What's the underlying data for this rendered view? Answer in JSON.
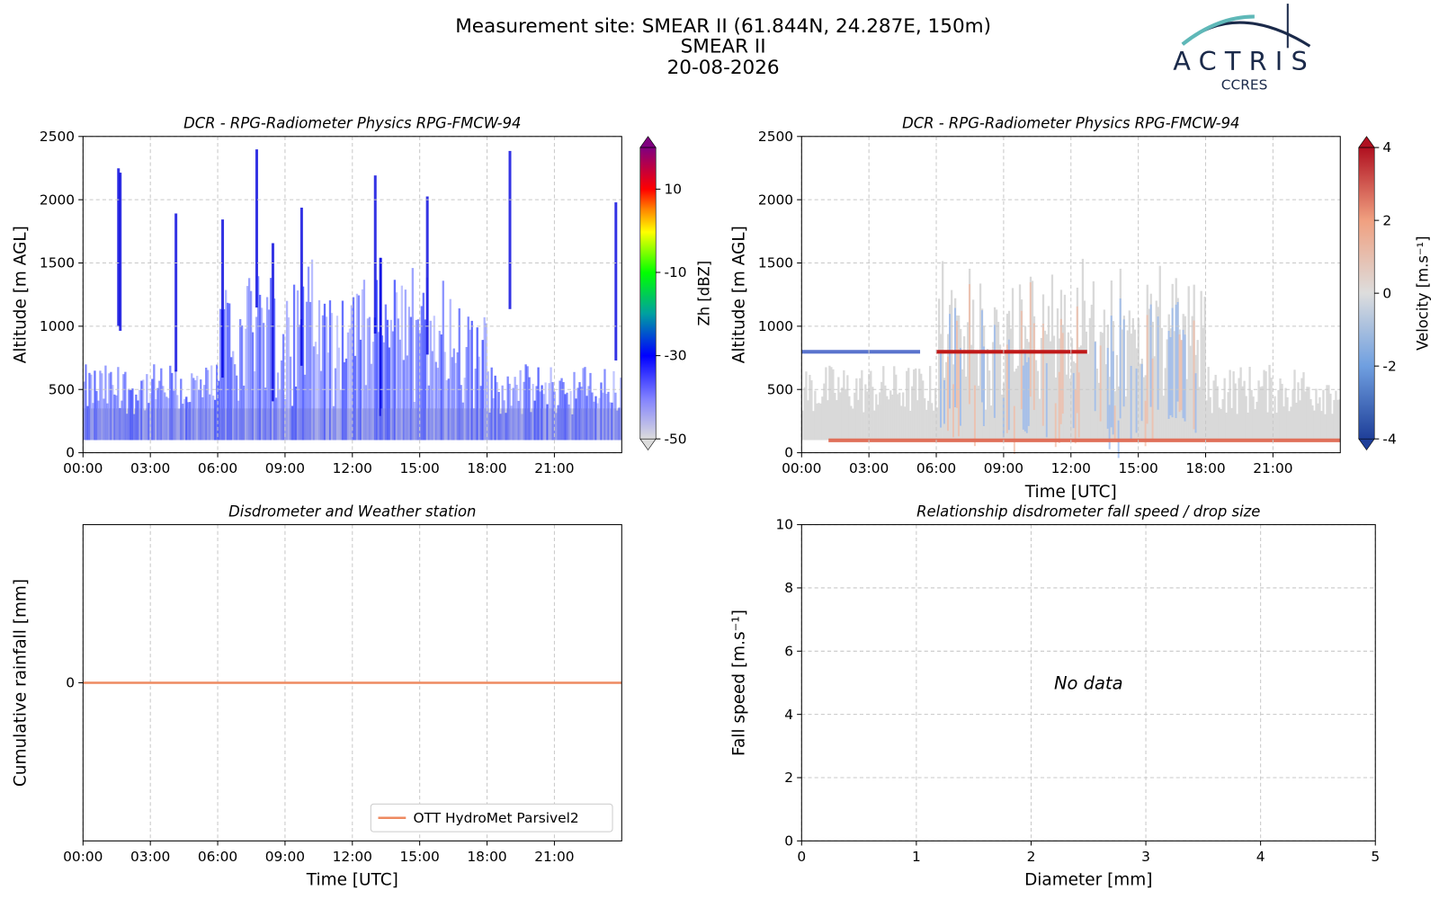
{
  "header": {
    "site": "Measurement site: SMEAR II (61.844N, 24.287E, 150m)",
    "station": "SMEAR II",
    "date": "20-08-2026"
  },
  "logo": {
    "name": "ACTRIS",
    "sub": "CCRES"
  },
  "chart_data": [
    {
      "type": "heatmap",
      "title": "DCR - RPG-Radiometer Physics RPG-FMCW-94",
      "ylabel": "Altitude [m AGL]",
      "xlim": [
        0,
        24
      ],
      "xticks": [
        {
          "value": 0,
          "label": "00:00"
        },
        {
          "value": 3,
          "label": "03:00"
        },
        {
          "value": 6,
          "label": "06:00"
        },
        {
          "value": 9,
          "label": "09:00"
        },
        {
          "value": 12,
          "label": "12:00"
        },
        {
          "value": 15,
          "label": "15:00"
        },
        {
          "value": 18,
          "label": "18:00"
        },
        {
          "value": 21,
          "label": "21:00"
        }
      ],
      "ylim": [
        0,
        2500
      ],
      "yticks": [
        0,
        500,
        1000,
        1500,
        2000,
        2500
      ],
      "grid": true,
      "colorbar": {
        "label": "Zh [dBZ]",
        "lim": [
          -50,
          20
        ],
        "ticks": [
          -50,
          -30,
          -10,
          10
        ],
        "colormap": "radar"
      }
    },
    {
      "type": "heatmap",
      "title": "DCR - RPG-Radiometer Physics RPG-FMCW-94",
      "ylabel": "Altitude [m AGL]",
      "xlabel": "Time [UTC]",
      "xlim": [
        0,
        24
      ],
      "xticks": [
        {
          "value": 0,
          "label": "00:00"
        },
        {
          "value": 3,
          "label": "03:00"
        },
        {
          "value": 6,
          "label": "06:00"
        },
        {
          "value": 9,
          "label": "09:00"
        },
        {
          "value": 12,
          "label": "12:00"
        },
        {
          "value": 15,
          "label": "15:00"
        },
        {
          "value": 18,
          "label": "18:00"
        },
        {
          "value": 21,
          "label": "21:00"
        }
      ],
      "ylim": [
        0,
        2500
      ],
      "yticks": [
        0,
        500,
        1000,
        1500,
        2000,
        2500
      ],
      "grid": true,
      "colorbar": {
        "label": "Velocity [m.s⁻¹]",
        "lim": [
          -4,
          4
        ],
        "ticks": [
          -4,
          -2,
          0,
          2,
          4
        ],
        "colormap": "velocity"
      }
    },
    {
      "type": "line",
      "title": "Disdrometer and Weather station",
      "ylabel": "Cumulative rainfall [mm]",
      "xlabel": "Time [UTC]",
      "xlim": [
        0,
        24
      ],
      "xticks": [
        {
          "value": 0,
          "label": "00:00"
        },
        {
          "value": 3,
          "label": "03:00"
        },
        {
          "value": 6,
          "label": "06:00"
        },
        {
          "value": 9,
          "label": "09:00"
        },
        {
          "value": 12,
          "label": "12:00"
        },
        {
          "value": 15,
          "label": "15:00"
        },
        {
          "value": 18,
          "label": "18:00"
        },
        {
          "value": 21,
          "label": "21:00"
        }
      ],
      "ylim": [
        -0.055,
        0.055
      ],
      "yticks": [
        0
      ],
      "grid": true,
      "legend": "lower right",
      "x": [
        0,
        24
      ],
      "series": [
        {
          "name": "OTT HydroMet Parsivel2",
          "color": "#ee8a60",
          "values": [
            0,
            0
          ]
        }
      ]
    },
    {
      "type": "scatter",
      "title": "Relationship disdrometer fall speed / drop size",
      "ylabel": "Fall speed [m.s⁻¹]",
      "xlabel": "Diameter [mm]",
      "xlim": [
        0,
        5
      ],
      "xticks": [
        0,
        1,
        2,
        3,
        4,
        5
      ],
      "ylim": [
        0,
        10
      ],
      "yticks": [
        0,
        2,
        4,
        6,
        8,
        10
      ],
      "grid": true,
      "annotation": "No data"
    }
  ]
}
